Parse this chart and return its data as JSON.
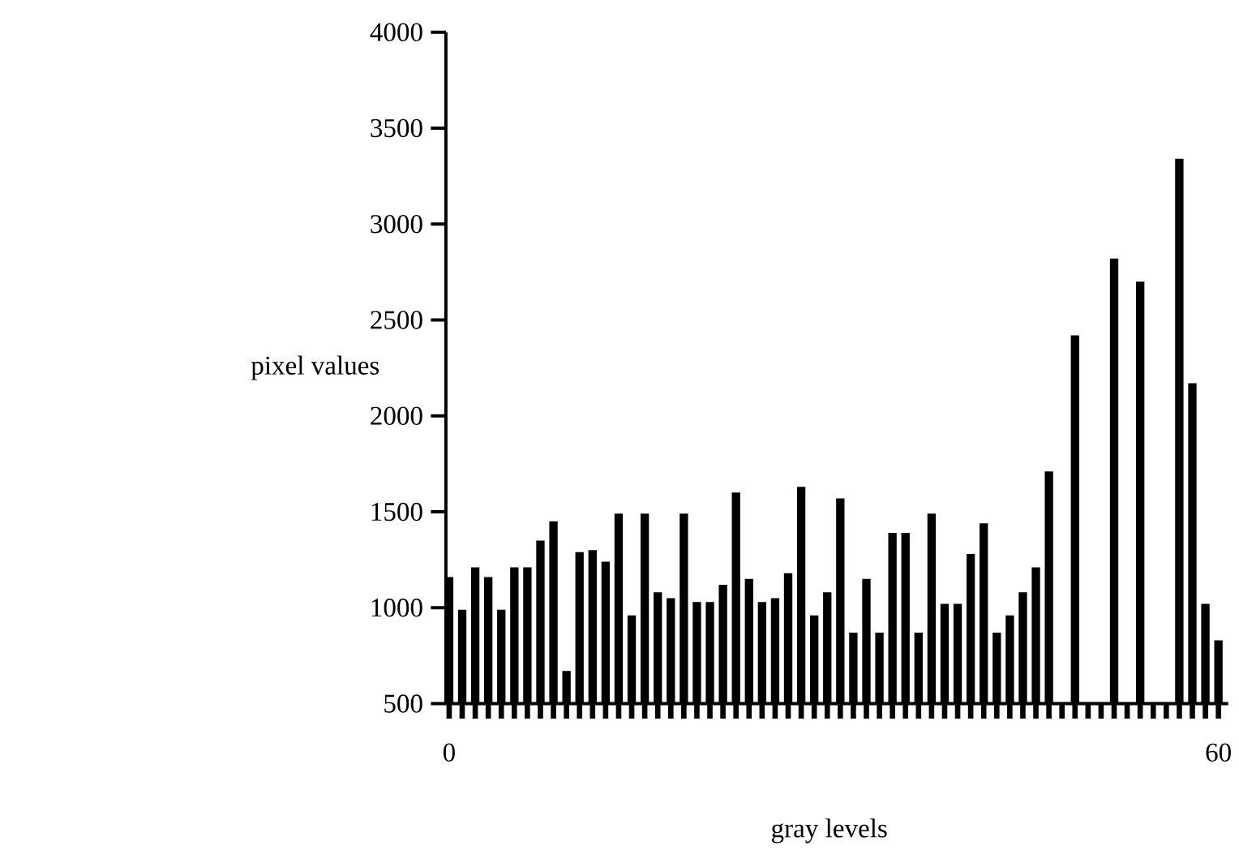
{
  "chart_data": {
    "type": "bar",
    "xlabel": "gray levels",
    "ylabel": "pixel values",
    "color": "#000000",
    "categories": [
      "0",
      null,
      null,
      null,
      null,
      null,
      null,
      null,
      null,
      null,
      null,
      null,
      null,
      null,
      null,
      null,
      null,
      null,
      null,
      null,
      null,
      null,
      null,
      null,
      null,
      null,
      null,
      null,
      null,
      null,
      null,
      null,
      null,
      null,
      null,
      null,
      null,
      null,
      null,
      null,
      null,
      null,
      null,
      null,
      null,
      null,
      null,
      null,
      null,
      null,
      null,
      null,
      null,
      null,
      null,
      null,
      null,
      null,
      null,
      "60"
    ],
    "values": [
      1160,
      990,
      1210,
      1160,
      990,
      1210,
      1210,
      1350,
      1450,
      670,
      1290,
      1300,
      1240,
      1490,
      960,
      1490,
      1080,
      1050,
      1490,
      1030,
      1030,
      1120,
      1600,
      1150,
      1030,
      1050,
      1180,
      1630,
      960,
      1080,
      1570,
      870,
      1150,
      870,
      1390,
      1390,
      870,
      1490,
      1020,
      1020,
      1280,
      1440,
      870,
      960,
      1080,
      1210,
      1710,
      null,
      2420,
      null,
      null,
      2820,
      null,
      2700,
      null,
      null,
      3340,
      2170,
      1020,
      830
    ],
    "ylim": [
      500,
      4000
    ],
    "yticks": [
      500,
      1000,
      1500,
      2000,
      2500,
      3000,
      3500,
      4000
    ]
  }
}
